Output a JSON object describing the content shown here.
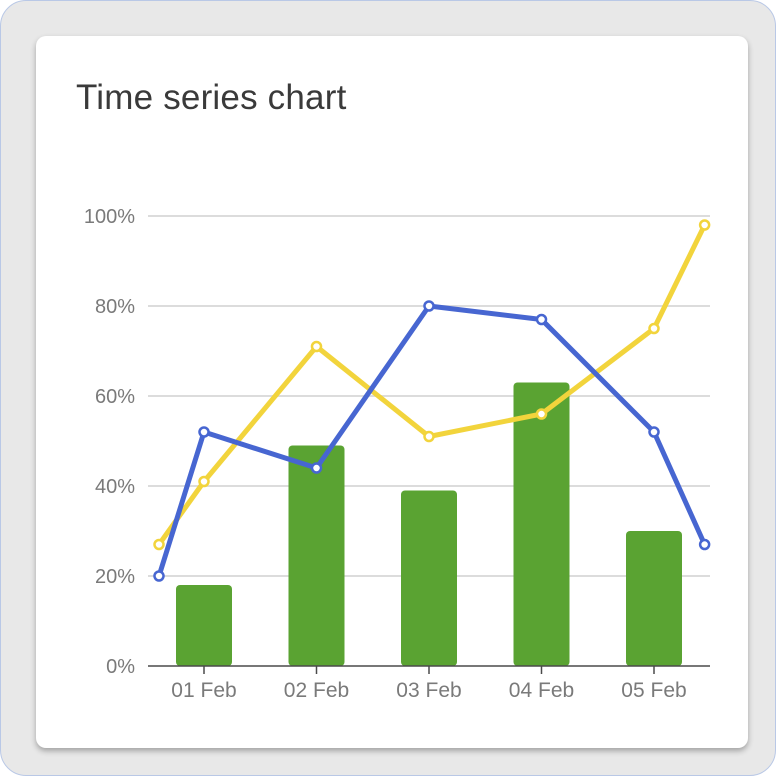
{
  "chart_data": {
    "type": "bar+line",
    "title": "Time series chart",
    "categories": [
      "01 Feb",
      "02 Feb",
      "03 Feb",
      "04 Feb",
      "05 Feb"
    ],
    "y_ticks": [
      "0%",
      "20%",
      "40%",
      "60%",
      "80%",
      "100%"
    ],
    "ylim": [
      0,
      100
    ],
    "grid": true,
    "legend": "none",
    "bars": {
      "color": "#5aa332",
      "x": [
        "01 Feb",
        "02 Feb",
        "03 Feb",
        "04 Feb",
        "05 Feb"
      ],
      "values": [
        18,
        49,
        39,
        63,
        30
      ]
    },
    "lines": [
      {
        "color": "#f2d43c",
        "x": [
          -0.4,
          0.0,
          1.0,
          2.0,
          3.0,
          4.0,
          4.45
        ],
        "values": [
          27,
          41,
          71,
          51,
          56,
          75,
          98
        ]
      },
      {
        "color": "#4766d1",
        "x": [
          -0.4,
          0.0,
          1.0,
          2.0,
          3.0,
          4.0,
          4.45
        ],
        "values": [
          20,
          52,
          44,
          80,
          77,
          52,
          27
        ]
      }
    ]
  }
}
